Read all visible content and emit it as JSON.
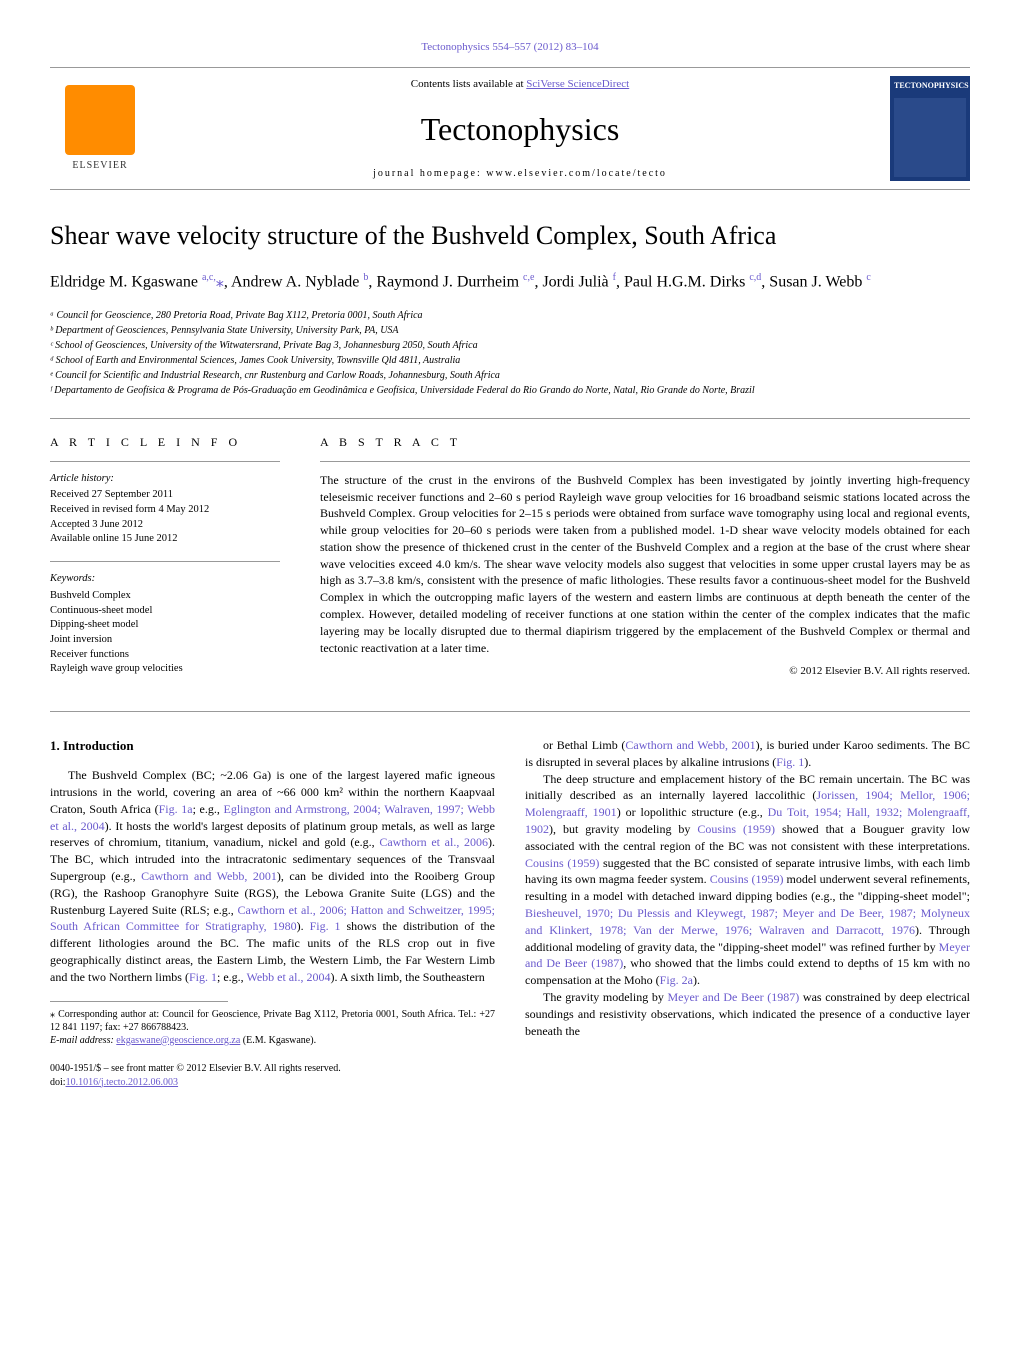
{
  "header": {
    "citation_link": "Tectonophysics 554–557 (2012) 83–104",
    "contents_prefix": "Contents lists available at ",
    "contents_link": "SciVerse ScienceDirect",
    "journal_name": "Tectonophysics",
    "homepage_text": "journal homepage: www.elsevier.com/locate/tecto",
    "elsevier_label": "ELSEVIER",
    "cover_journal": "TECTONOPHYSICS"
  },
  "article": {
    "title": "Shear wave velocity structure of the Bushveld Complex, South Africa",
    "authors_html": "Eldridge M. Kgaswane <sup>a,c,</sup><span class='corr-star'>⁎</span>, Andrew A. Nyblade <sup>b</sup>, Raymond J. Durrheim <sup>c,e</sup>, Jordi Julià <sup>f</sup>, Paul H.G.M. Dirks <sup>c,d</sup>, Susan J. Webb <sup>c</sup>",
    "affiliations": [
      "ᵃ Council for Geoscience, 280 Pretoria Road, Private Bag X112, Pretoria 0001, South Africa",
      "ᵇ Department of Geosciences, Pennsylvania State University, University Park, PA, USA",
      "ᶜ School of Geosciences, University of the Witwatersrand, Private Bag 3, Johannesburg 2050, South Africa",
      "ᵈ School of Earth and Environmental Sciences, James Cook University, Townsville Qld 4811, Australia",
      "ᵉ Council for Scientific and Industrial Research, cnr Rustenburg and Carlow Roads, Johannesburg, South Africa",
      "ᶠ Departamento de Geofísica & Programa de Pós-Graduação em Geodinâmica e Geofísica, Universidade Federal do Rio Grando do Norte, Natal, Rio Grande do Norte, Brazil"
    ]
  },
  "info": {
    "article_info_label": "A R T I C L E   I N F O",
    "abstract_label": "A B S T R A C T",
    "history_title": "Article history:",
    "history": [
      "Received 27 September 2011",
      "Received in revised form 4 May 2012",
      "Accepted 3 June 2012",
      "Available online 15 June 2012"
    ],
    "keywords_title": "Keywords:",
    "keywords": [
      "Bushveld Complex",
      "Continuous-sheet model",
      "Dipping-sheet model",
      "Joint inversion",
      "Receiver functions",
      "Rayleigh wave group velocities"
    ]
  },
  "abstract": {
    "text": "The structure of the crust in the environs of the Bushveld Complex has been investigated by jointly inverting high-frequency teleseismic receiver functions and 2–60 s period Rayleigh wave group velocities for 16 broadband seismic stations located across the Bushveld Complex. Group velocities for 2–15 s periods were obtained from surface wave tomography using local and regional events, while group velocities for 20–60 s periods were taken from a published model. 1-D shear wave velocity models obtained for each station show the presence of thickened crust in the center of the Bushveld Complex and a region at the base of the crust where shear wave velocities exceed 4.0 km/s. The shear wave velocity models also suggest that velocities in some upper crustal layers may be as high as 3.7–3.8 km/s, consistent with the presence of mafic lithologies. These results favor a continuous-sheet model for the Bushveld Complex in which the outcropping mafic layers of the western and eastern limbs are continuous at depth beneath the center of the complex. However, detailed modeling of receiver functions at one station within the center of the complex indicates that the mafic layering may be locally disrupted due to thermal diapirism triggered by the emplacement of the Bushveld Complex or thermal and tectonic reactivation at a later time.",
    "copyright": "© 2012 Elsevier B.V. All rights reserved."
  },
  "body": {
    "section_heading": "1. Introduction",
    "col1_p1": "The Bushveld Complex (BC; ~2.06 Ga) is one of the largest layered mafic igneous intrusions in the world, covering an area of ~66 000 km² within the northern Kaapvaal Craton, South Africa (Fig. 1a; e.g., Eglington and Armstrong, 2004; Walraven, 1997; Webb et al., 2004). It hosts the world's largest deposits of platinum group metals, as well as large reserves of chromium, titanium, vanadium, nickel and gold (e.g., Cawthorn et al., 2006). The BC, which intruded into the intracratonic sedimentary sequences of the Transvaal Supergroup (e.g., Cawthorn and Webb, 2001), can be divided into the Rooiberg Group (RG), the Rashoop Granophyre Suite (RGS), the Lebowa Granite Suite (LGS) and the Rustenburg Layered Suite (RLS; e.g., Cawthorn et al., 2006; Hatton and Schweitzer, 1995; South African Committee for Stratigraphy, 1980). Fig. 1 shows the distribution of the different lithologies around the BC. The mafic units of the RLS crop out in five geographically distinct areas, the Eastern Limb, the Western Limb, the Far Western Limb and the two Northern limbs (Fig. 1; e.g., Webb et al., 2004). A sixth limb, the Southeastern",
    "col2_p1": "or Bethal Limb (Cawthorn and Webb, 2001), is buried under Karoo sediments. The BC is disrupted in several places by alkaline intrusions (Fig. 1).",
    "col2_p2": "The deep structure and emplacement history of the BC remain uncertain. The BC was initially described as an internally layered laccolithic (Jorissen, 1904; Mellor, 1906; Molengraaff, 1901) or lopolithic structure (e.g., Du Toit, 1954; Hall, 1932; Molengraaff, 1902), but gravity modeling by Cousins (1959) showed that a Bouguer gravity low associated with the central region of the BC was not consistent with these interpretations. Cousins (1959) suggested that the BC consisted of separate intrusive limbs, with each limb having its own magma feeder system. Cousins (1959) model underwent several refinements, resulting in a model with detached inward dipping bodies (e.g., the \"dipping-sheet model\"; Biesheuvel, 1970; Du Plessis and Kleywegt, 1987; Meyer and De Beer, 1987; Molyneux and Klinkert, 1978; Van der Merwe, 1976; Walraven and Darracott, 1976). Through additional modeling of gravity data, the \"dipping-sheet model\" was refined further by Meyer and De Beer (1987), who showed that the limbs could extend to depths of 15 km with no compensation at the Moho (Fig. 2a).",
    "col2_p3": "The gravity modeling by Meyer and De Beer (1987) was constrained by deep electrical soundings and resistivity observations, which indicated the presence of a conductive layer beneath the"
  },
  "footnotes": {
    "corr": "⁎ Corresponding author at: Council for Geoscience, Private Bag X112, Pretoria 0001, South Africa. Tel.: +27 12 841 1197; fax: +27 866788423.",
    "email_label": "E-mail address: ",
    "email": "ekgaswane@geoscience.org.za",
    "email_suffix": " (E.M. Kgaswane)."
  },
  "footer": {
    "issn": "0040-1951/$ – see front matter © 2012 Elsevier B.V. All rights reserved.",
    "doi_label": "doi:",
    "doi": "10.1016/j.tecto.2012.06.003"
  }
}
